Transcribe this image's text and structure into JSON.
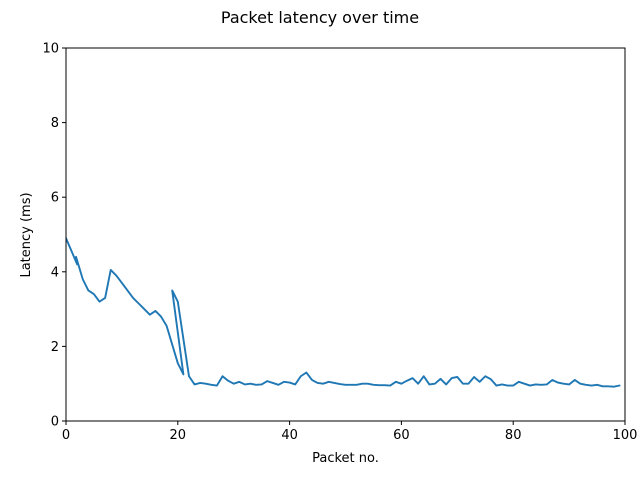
{
  "chart_data": {
    "type": "line",
    "title": "Packet latency over time",
    "xlabel": "Packet no.",
    "ylabel": "Latency (ms)",
    "xlim": [
      0,
      100
    ],
    "ylim": [
      0,
      10
    ],
    "xticks": [
      0,
      20,
      40,
      60,
      80,
      100
    ],
    "yticks": [
      0,
      2,
      4,
      6,
      8,
      10
    ],
    "grid": false,
    "series_color": "#1f77b4",
    "series": [
      {
        "points": [
          [
            0,
            4.9
          ],
          [
            1,
            4.55
          ],
          [
            2,
            4.2
          ],
          [
            1.8,
            4.4
          ],
          [
            3,
            3.8
          ],
          [
            4,
            3.5
          ],
          [
            5,
            3.4
          ],
          [
            6,
            3.2
          ],
          [
            7,
            3.3
          ],
          [
            8,
            4.05
          ],
          [
            9,
            3.9
          ],
          [
            10,
            3.7
          ],
          [
            11,
            3.5
          ],
          [
            12,
            3.3
          ],
          [
            13,
            3.15
          ],
          [
            14,
            3.0
          ],
          [
            15,
            2.85
          ],
          [
            16,
            2.95
          ],
          [
            17,
            2.8
          ],
          [
            18,
            2.55
          ],
          [
            19,
            2.05
          ],
          [
            20,
            1.55
          ],
          [
            21,
            1.25
          ],
          [
            19,
            3.5
          ],
          [
            20,
            3.2
          ],
          [
            21,
            2.2
          ],
          [
            22,
            1.2
          ],
          [
            23,
            0.98
          ],
          [
            24,
            1.02
          ],
          [
            25,
            1.0
          ],
          [
            26,
            0.97
          ],
          [
            27,
            0.95
          ],
          [
            28,
            1.2
          ],
          [
            29,
            1.08
          ],
          [
            30,
            1.0
          ],
          [
            31,
            1.05
          ],
          [
            32,
            0.98
          ],
          [
            33,
            1.0
          ],
          [
            34,
            0.97
          ],
          [
            35,
            0.98
          ],
          [
            36,
            1.07
          ],
          [
            37,
            1.02
          ],
          [
            38,
            0.97
          ],
          [
            39,
            1.05
          ],
          [
            40,
            1.03
          ],
          [
            41,
            0.98
          ],
          [
            42,
            1.2
          ],
          [
            43,
            1.3
          ],
          [
            44,
            1.1
          ],
          [
            45,
            1.02
          ],
          [
            46,
            1.0
          ],
          [
            47,
            1.05
          ],
          [
            48,
            1.02
          ],
          [
            49,
            0.99
          ],
          [
            50,
            0.97
          ],
          [
            51,
            0.97
          ],
          [
            52,
            0.97
          ],
          [
            53,
            1.0
          ],
          [
            54,
            1.0
          ],
          [
            55,
            0.97
          ],
          [
            56,
            0.96
          ],
          [
            57,
            0.96
          ],
          [
            58,
            0.95
          ],
          [
            59,
            1.05
          ],
          [
            60,
            1.0
          ],
          [
            61,
            1.08
          ],
          [
            62,
            1.15
          ],
          [
            63,
            1.0
          ],
          [
            64,
            1.2
          ],
          [
            65,
            0.98
          ],
          [
            66,
            1.0
          ],
          [
            67,
            1.13
          ],
          [
            68,
            0.98
          ],
          [
            69,
            1.15
          ],
          [
            70,
            1.18
          ],
          [
            71,
            1.0
          ],
          [
            72,
            1.0
          ],
          [
            73,
            1.18
          ],
          [
            74,
            1.05
          ],
          [
            75,
            1.2
          ],
          [
            76,
            1.12
          ],
          [
            77,
            0.95
          ],
          [
            78,
            0.98
          ],
          [
            79,
            0.95
          ],
          [
            80,
            0.95
          ],
          [
            81,
            1.05
          ],
          [
            82,
            1.0
          ],
          [
            83,
            0.95
          ],
          [
            84,
            0.98
          ],
          [
            85,
            0.97
          ],
          [
            86,
            0.98
          ],
          [
            87,
            1.1
          ],
          [
            88,
            1.03
          ],
          [
            89,
            1.0
          ],
          [
            90,
            0.98
          ],
          [
            91,
            1.1
          ],
          [
            92,
            1.0
          ],
          [
            93,
            0.97
          ],
          [
            94,
            0.95
          ],
          [
            95,
            0.97
          ],
          [
            96,
            0.93
          ],
          [
            97,
            0.93
          ],
          [
            98,
            0.92
          ],
          [
            99,
            0.95
          ]
        ]
      }
    ]
  }
}
